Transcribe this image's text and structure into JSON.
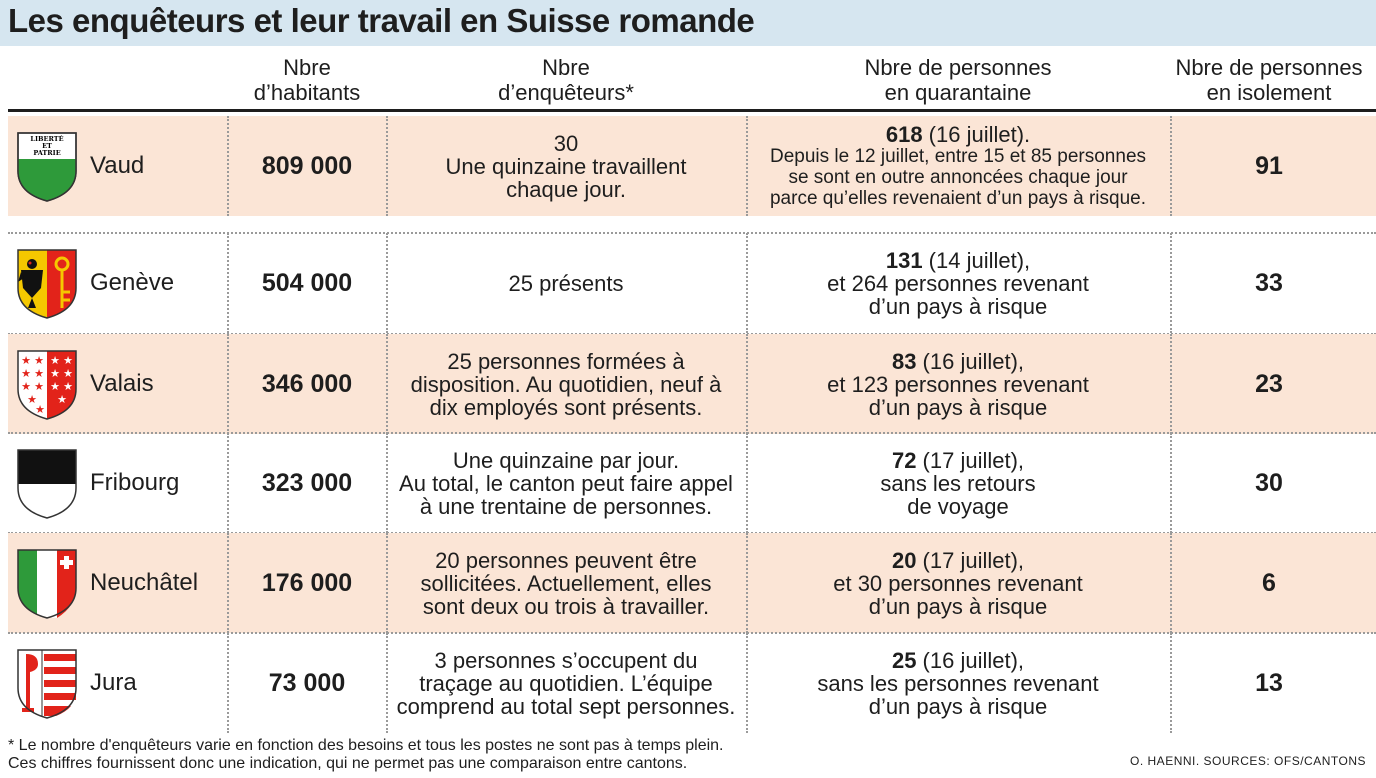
{
  "title": "Les enquêteurs et leur travail en Suisse romande",
  "headers": {
    "habitants": "Nbre\nd’habitants",
    "enqueteurs": "Nbre\nd’enquêteurs*",
    "quarantaine": "Nbre de personnes\nen quarantaine",
    "isolement": "Nbre de personnes\nen isolement"
  },
  "rows": [
    {
      "canton": "Vaud",
      "flag_text": [
        "LIBERTÉ",
        "ET",
        "PATRIE"
      ],
      "habitants": "809 000",
      "enqueteurs_1": "30",
      "enqueteurs_2": "Une quinzaine travaillent",
      "enqueteurs_3": "chaque jour.",
      "q_num": "618",
      "q_line1": " (16 juillet).",
      "q_line2": "Depuis le 12 juillet, entre 15 et 85 personnes",
      "q_line3": "se sont en outre annoncées chaque jour",
      "q_line4": "parce qu’elles revenaient d’un pays à risque.",
      "isolement": "91"
    },
    {
      "canton": "Genève",
      "habitants": "504 000",
      "enqueteurs_1": "25 présents",
      "q_num": "131",
      "q_line1": " (14 juillet),",
      "q_line2": "et 264 personnes revenant",
      "q_line3": "d’un pays à risque",
      "isolement": "33"
    },
    {
      "canton": "Valais",
      "habitants": "346 000",
      "enqueteurs_1": "25 personnes formées à",
      "enqueteurs_2": "disposition. Au quotidien, neuf à",
      "enqueteurs_3": "dix employés sont présents.",
      "q_num": "83",
      "q_line1": " (16 juillet),",
      "q_line2": "et 123 personnes revenant",
      "q_line3": "d’un pays à risque",
      "isolement": "23"
    },
    {
      "canton": "Fribourg",
      "habitants": "323 000",
      "enqueteurs_1": "Une quinzaine par jour.",
      "enqueteurs_2": "Au total, le canton peut faire appel",
      "enqueteurs_3": "à une trentaine de personnes.",
      "q_num": "72",
      "q_line1": " (17 juillet),",
      "q_line2": "sans les retours",
      "q_line3": "de voyage",
      "isolement": "30"
    },
    {
      "canton": "Neuchâtel",
      "habitants": "176 000",
      "enqueteurs_1": "20 personnes peuvent être",
      "enqueteurs_2": "sollicitées. Actuellement, elles",
      "enqueteurs_3": "sont deux ou trois à travailler.",
      "q_num": "20",
      "q_line1": " (17 juillet),",
      "q_line2": "et 30 personnes revenant",
      "q_line3": "d’un pays à risque",
      "isolement": "6"
    },
    {
      "canton": "Jura",
      "habitants": "73 000",
      "enqueteurs_1": "3 personnes s’occupent du",
      "enqueteurs_2": "traçage au quotidien. L’équipe",
      "enqueteurs_3": "comprend au total sept personnes.",
      "q_num": "25",
      "q_line1": " (16 juillet),",
      "q_line2": "sans les personnes revenant",
      "q_line3": "d’un pays à risque",
      "isolement": "13"
    }
  ],
  "footnote": "* Le nombre d'enquêteurs varie en fonction des besoins et tous les postes ne sont pas à temps plein.\nCes chiffres fournissent donc une indication, qui ne permet pas une comparaison entre cantons.",
  "credit": "O. HAENNI. SOURCES: OFS/CANTONS",
  "colors": {
    "title_band": "#d6e6f0",
    "row_shade": "#fbe5d6",
    "vaud_green": "#2e9a3a",
    "geneva_yellow": "#f5c800",
    "red": "#e2231a"
  }
}
